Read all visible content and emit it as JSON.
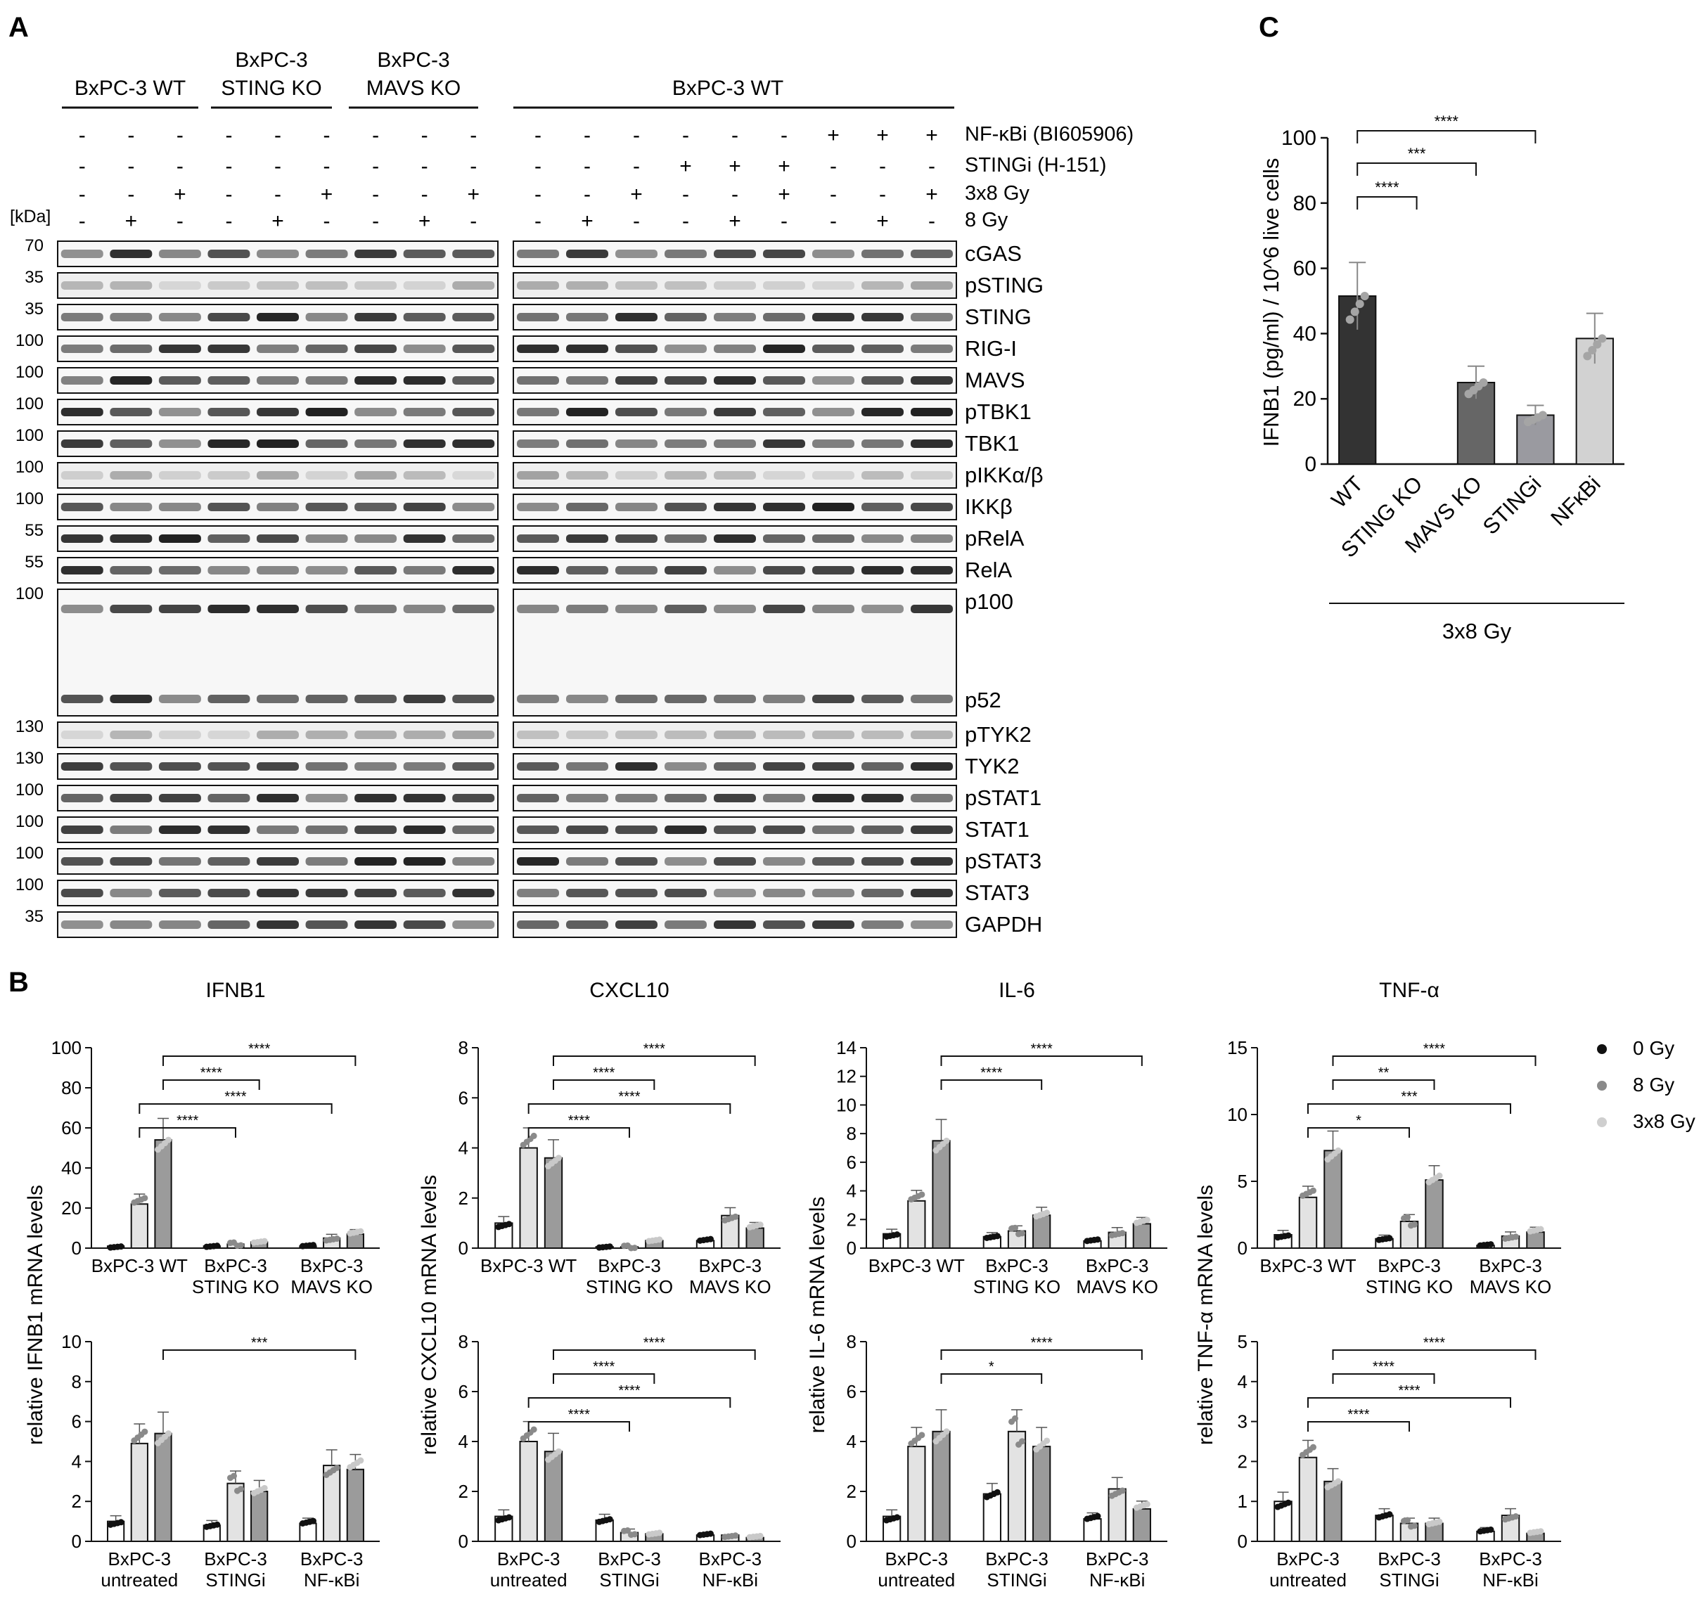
{
  "panel_labels": {
    "a": "A",
    "b": "B",
    "c": "C"
  },
  "kda_label": "[kDa]",
  "blot": {
    "left_groups": [
      {
        "line1": "",
        "line2": "BxPC-3 WT"
      },
      {
        "line1": "BxPC-3",
        "line2": "STING KO"
      },
      {
        "line1": "BxPC-3",
        "line2": "MAVS KO"
      }
    ],
    "right_group": "BxPC-3 WT",
    "treatments": [
      {
        "label": "NF-κBi (BI605906)",
        "left": [
          "-",
          "-",
          "-",
          "-",
          "-",
          "-",
          "-",
          "-",
          "-"
        ],
        "right": [
          "-",
          "-",
          "-",
          "-",
          "-",
          "-",
          "+",
          "+",
          "+"
        ]
      },
      {
        "label": "STINGi (H-151)",
        "left": [
          "-",
          "-",
          "-",
          "-",
          "-",
          "-",
          "-",
          "-",
          "-"
        ],
        "right": [
          "-",
          "-",
          "-",
          "+",
          "+",
          "+",
          "-",
          "-",
          "-"
        ]
      },
      {
        "label": "3x8 Gy",
        "left": [
          "-",
          "-",
          "+",
          "-",
          "-",
          "+",
          "-",
          "-",
          "+"
        ],
        "right": [
          "-",
          "-",
          "+",
          "-",
          "-",
          "+",
          "-",
          "-",
          "+"
        ]
      },
      {
        "label": "8 Gy",
        "left": [
          "-",
          "+",
          "-",
          "-",
          "+",
          "-",
          "-",
          "+",
          "-"
        ],
        "right": [
          "-",
          "+",
          "-",
          "-",
          "+",
          "-",
          "-",
          "+",
          "-"
        ]
      }
    ],
    "rows": [
      {
        "label": "cGAS",
        "kda": "70",
        "tall": false
      },
      {
        "label": "pSTING",
        "kda": "35",
        "tall": false
      },
      {
        "label": "STING",
        "kda": "35",
        "tall": false
      },
      {
        "label": "RIG-I",
        "kda": "100",
        "tall": false
      },
      {
        "label": "MAVS",
        "kda": "100",
        "tall": false
      },
      {
        "label": "pTBK1",
        "kda": "100",
        "tall": false
      },
      {
        "label": "TBK1",
        "kda": "100",
        "tall": false
      },
      {
        "label": "pIKKα/β",
        "kda": "100",
        "tall": false
      },
      {
        "label": "IKKβ",
        "kda": "100",
        "tall": false
      },
      {
        "label": "pRelA",
        "kda": "55",
        "tall": false
      },
      {
        "label": "RelA",
        "kda": "55",
        "tall": false
      },
      {
        "label": "p100",
        "label2": "p52",
        "kda": "100",
        "tall": true
      },
      {
        "label": "pTYK2",
        "kda": "130",
        "tall": false
      },
      {
        "label": "TYK2",
        "kda": "130",
        "tall": false
      },
      {
        "label": "pSTAT1",
        "kda": "100",
        "tall": false
      },
      {
        "label": "STAT1",
        "kda": "100",
        "tall": false
      },
      {
        "label": "pSTAT3",
        "kda": "100",
        "tall": false
      },
      {
        "label": "STAT3",
        "kda": "100",
        "tall": false
      },
      {
        "label": "GAPDH",
        "kda": "35",
        "tall": false
      }
    ]
  },
  "legend": {
    "entries": [
      {
        "name": "0 Gy",
        "color": "#111111"
      },
      {
        "name": "8 Gy",
        "color": "#8a8a8a"
      },
      {
        "name": "3x8 Gy",
        "color": "#cfcfcf"
      }
    ]
  },
  "colors": {
    "g0": "#ffffff",
    "g8": "#e3e3e3",
    "g38": "#9b9b9b"
  },
  "chart_data": [
    {
      "id": "b_ifnb1_ko",
      "type": "bar",
      "title": "IFNB1",
      "ylabel": "relative IFNB1 mRNA levels",
      "ylim": [
        0,
        100
      ],
      "yticks": [
        0,
        20,
        40,
        60,
        80,
        100
      ],
      "groups": [
        [
          "BxPC-3 WT",
          ""
        ],
        [
          "BxPC-3",
          "STING KO"
        ],
        [
          "BxPC-3",
          "MAVS KO"
        ]
      ],
      "series": [
        {
          "name": "0 Gy",
          "values": [
            1,
            1,
            1
          ]
        },
        {
          "name": "8 Gy",
          "values": [
            22,
            2,
            5
          ]
        },
        {
          "name": "3x8 Gy",
          "values": [
            54,
            3,
            7
          ]
        }
      ],
      "significance": [
        "****",
        "****",
        "****",
        "****"
      ]
    },
    {
      "id": "b_cxcl10_ko",
      "type": "bar",
      "title": "CXCL10",
      "ylabel": "relative CXCL10 mRNA levels",
      "ylim": [
        0,
        8
      ],
      "yticks": [
        0,
        2,
        4,
        6,
        8
      ],
      "groups": [
        [
          "BxPC-3 WT",
          ""
        ],
        [
          "BxPC-3",
          "STING KO"
        ],
        [
          "BxPC-3",
          "MAVS KO"
        ]
      ],
      "series": [
        {
          "name": "0 Gy",
          "values": [
            1,
            0.05,
            0.3
          ]
        },
        {
          "name": "8 Gy",
          "values": [
            4.0,
            0.05,
            1.3
          ]
        },
        {
          "name": "3x8 Gy",
          "values": [
            3.6,
            0.3,
            0.8
          ]
        }
      ],
      "significance": [
        "****",
        "****",
        "****",
        "****"
      ]
    },
    {
      "id": "b_il6_ko",
      "type": "bar",
      "title": "IL-6",
      "ylabel": "relative IL-6 mRNA levels",
      "ylim": [
        0,
        14
      ],
      "yticks": [
        0,
        2,
        4,
        6,
        8,
        10,
        12,
        14
      ],
      "groups": [
        [
          "BxPC-3 WT",
          ""
        ],
        [
          "BxPC-3",
          "STING KO"
        ],
        [
          "BxPC-3",
          "MAVS KO"
        ]
      ],
      "series": [
        {
          "name": "0 Gy",
          "values": [
            1,
            0.8,
            0.5
          ]
        },
        {
          "name": "8 Gy",
          "values": [
            3.3,
            1.2,
            1.1
          ]
        },
        {
          "name": "3x8 Gy",
          "values": [
            7.5,
            2.3,
            1.7
          ]
        }
      ],
      "significance": [
        "****",
        "****"
      ]
    },
    {
      "id": "b_tnf_ko",
      "type": "bar",
      "title": "TNF-α",
      "ylabel": "relative TNF-α mRNA levels",
      "ylim": [
        0,
        15
      ],
      "yticks": [
        0,
        5,
        10,
        15
      ],
      "groups": [
        [
          "BxPC-3 WT",
          ""
        ],
        [
          "BxPC-3",
          "STING KO"
        ],
        [
          "BxPC-3",
          "MAVS KO"
        ]
      ],
      "series": [
        {
          "name": "0 Gy",
          "values": [
            1,
            0.7,
            0.2
          ]
        },
        {
          "name": "8 Gy",
          "values": [
            3.8,
            2.0,
            0.9
          ]
        },
        {
          "name": "3x8 Gy",
          "values": [
            7.3,
            5.1,
            1.2
          ]
        }
      ],
      "significance": [
        "****",
        "**",
        "***",
        "*"
      ]
    },
    {
      "id": "b_ifnb1_inh",
      "type": "bar",
      "title": "",
      "ylabel": "",
      "ylim": [
        0,
        10
      ],
      "yticks": [
        0,
        2,
        4,
        6,
        8,
        10
      ],
      "groups": [
        [
          "BxPC-3",
          "untreated"
        ],
        [
          "BxPC-3",
          "STINGi"
        ],
        [
          "BxPC-3",
          "NF-κBi"
        ]
      ],
      "series": [
        {
          "name": "0 Gy",
          "values": [
            1,
            0.8,
            0.9
          ]
        },
        {
          "name": "8 Gy",
          "values": [
            4.9,
            2.9,
            3.8
          ]
        },
        {
          "name": "3x8 Gy",
          "values": [
            5.4,
            2.5,
            3.6
          ]
        }
      ],
      "significance": [
        "***"
      ]
    },
    {
      "id": "b_cxcl10_inh",
      "type": "bar",
      "title": "",
      "ylabel": "",
      "ylim": [
        0,
        8
      ],
      "yticks": [
        0,
        2,
        4,
        6,
        8
      ],
      "groups": [
        [
          "BxPC-3",
          "untreated"
        ],
        [
          "BxPC-3",
          "STINGi"
        ],
        [
          "BxPC-3",
          "NF-κBi"
        ]
      ],
      "series": [
        {
          "name": "0 Gy",
          "values": [
            1,
            0.85,
            0.25
          ]
        },
        {
          "name": "8 Gy",
          "values": [
            4.0,
            0.35,
            0.25
          ]
        },
        {
          "name": "3x8 Gy",
          "values": [
            3.6,
            0.3,
            0.15
          ]
        }
      ],
      "significance": [
        "****",
        "****",
        "****",
        "****"
      ]
    },
    {
      "id": "b_il6_inh",
      "type": "bar",
      "title": "",
      "ylabel": "",
      "ylim": [
        0,
        8
      ],
      "yticks": [
        0,
        2,
        4,
        6,
        8
      ],
      "groups": [
        [
          "BxPC-3",
          "untreated"
        ],
        [
          "BxPC-3",
          "STINGi"
        ],
        [
          "BxPC-3",
          "NF-κBi"
        ]
      ],
      "series": [
        {
          "name": "0 Gy",
          "values": [
            1,
            1.9,
            0.9
          ]
        },
        {
          "name": "8 Gy",
          "values": [
            3.8,
            4.4,
            2.1
          ]
        },
        {
          "name": "3x8 Gy",
          "values": [
            4.4,
            3.8,
            1.3
          ]
        }
      ],
      "significance": [
        "****",
        "*"
      ]
    },
    {
      "id": "b_tnf_inh",
      "type": "bar",
      "title": "",
      "ylabel": "",
      "ylim": [
        0,
        5
      ],
      "yticks": [
        0,
        1,
        2,
        3,
        4,
        5
      ],
      "groups": [
        [
          "BxPC-3",
          "untreated"
        ],
        [
          "BxPC-3",
          "STINGi"
        ],
        [
          "BxPC-3",
          "NF-κBi"
        ]
      ],
      "series": [
        {
          "name": "0 Gy",
          "values": [
            1,
            0.65,
            0.25
          ]
        },
        {
          "name": "8 Gy",
          "values": [
            2.1,
            0.45,
            0.65
          ]
        },
        {
          "name": "3x8 Gy",
          "values": [
            1.5,
            0.45,
            0.2
          ]
        }
      ],
      "significance": [
        "****",
        "****",
        "****",
        "****"
      ]
    },
    {
      "id": "c_ifnb1_protein",
      "type": "bar",
      "title": "",
      "ylabel": "IFNB1 (pg/ml) / 10^6 live cells",
      "xlabel": "3x8 Gy",
      "ylim": [
        0,
        100
      ],
      "yticks": [
        0,
        20,
        40,
        60,
        80,
        100
      ],
      "categories": [
        "WT",
        "STING KO",
        "MAVS KO",
        "STINGi",
        "NFκBi"
      ],
      "values": [
        51.5,
        0,
        25,
        15,
        38.5
      ],
      "colors": [
        "#333333",
        "#555555",
        "#666666",
        "#9a9aa0",
        "#d2d2d2"
      ],
      "significance": [
        "****",
        "***",
        "****"
      ]
    }
  ]
}
